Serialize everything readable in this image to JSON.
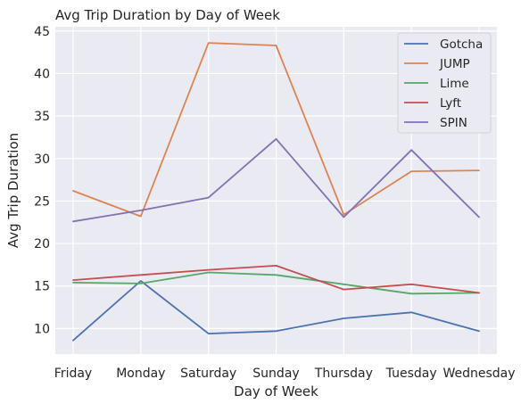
{
  "chart_data": {
    "type": "line",
    "title": "Avg Trip Duration by Day of Week",
    "xlabel": "Day of Week",
    "ylabel": "Avg Trip Duration",
    "categories": [
      "Friday",
      "Monday",
      "Saturday",
      "Sunday",
      "Thursday",
      "Tuesday",
      "Wednesday"
    ],
    "ylim": [
      7,
      45.5
    ],
    "yticks": [
      10,
      15,
      20,
      25,
      30,
      35,
      40,
      45
    ],
    "grid": true,
    "legend_position": "top-right",
    "series": [
      {
        "name": "Gotcha",
        "color": "#4c72b0",
        "values": [
          8.6,
          15.6,
          9.4,
          9.7,
          11.2,
          11.9,
          9.7
        ]
      },
      {
        "name": "JUMP",
        "color": "#dd8452",
        "values": [
          26.2,
          23.2,
          43.6,
          43.3,
          23.4,
          28.5,
          28.6
        ]
      },
      {
        "name": "Lime",
        "color": "#55a868",
        "values": [
          15.4,
          15.3,
          16.6,
          16.3,
          15.2,
          14.1,
          14.2
        ]
      },
      {
        "name": "Lyft",
        "color": "#c44e52",
        "values": [
          15.7,
          16.3,
          16.9,
          17.4,
          14.6,
          15.2,
          14.2
        ]
      },
      {
        "name": "SPIN",
        "color": "#8172b3",
        "values": [
          22.6,
          23.9,
          25.4,
          32.3,
          23.1,
          31.0,
          23.1
        ]
      }
    ]
  }
}
